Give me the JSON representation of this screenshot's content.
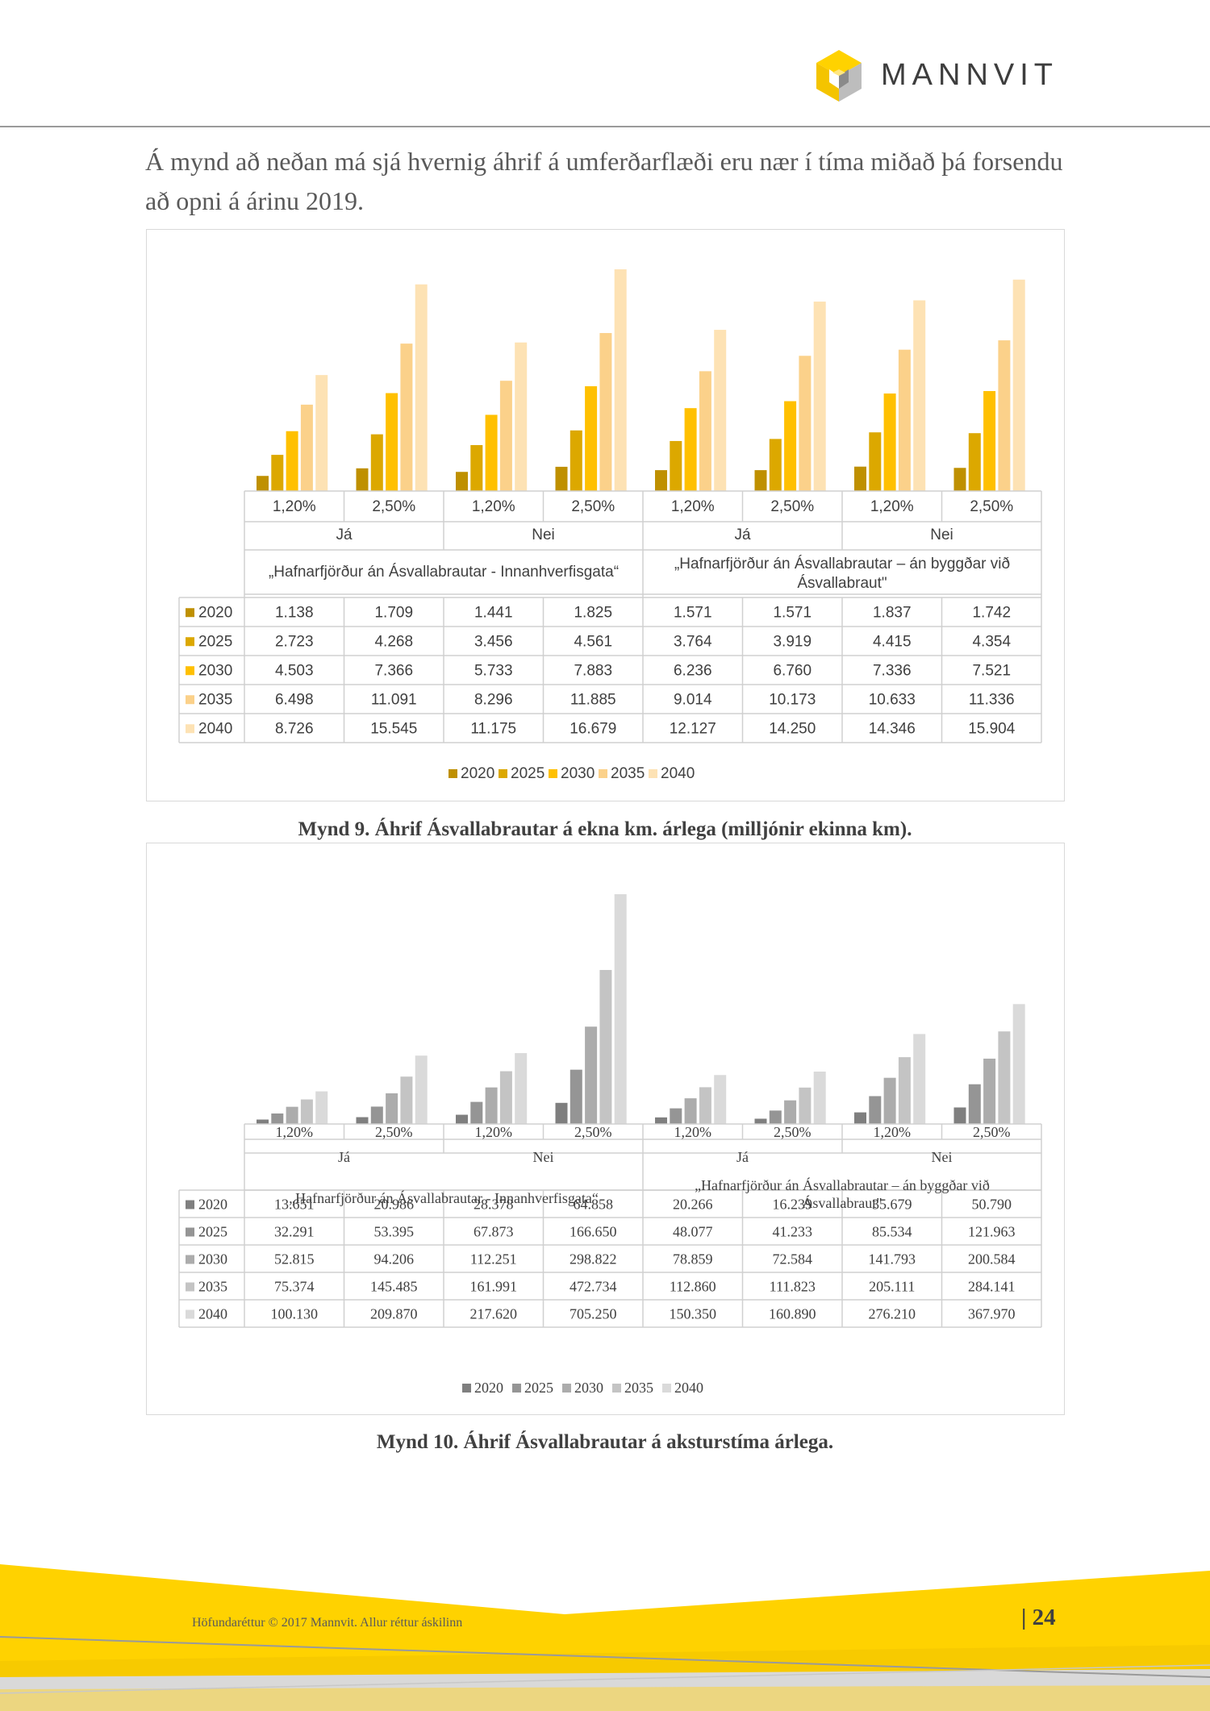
{
  "header": {
    "logo_text": "MANNVIT"
  },
  "intro_text": "Á mynd að neðan má sjá hvernig áhrif á umferðarflæði eru nær í tíma miðað þá forsendu að opni á árinu 2019.",
  "captions": {
    "figure9": "Mynd 9. Áhrif Ásvallabrautar á ekna km. árlega (milljónir ekinna km).",
    "figure10": "Mynd 10. Áhrif Ásvallabrautar á aksturstíma árlega."
  },
  "footer": {
    "copyright": "Höfundaréttur © 2017 Mannvit. Allur réttur áskilinn",
    "page_number": "| 24"
  },
  "chart_data": [
    {
      "type": "bar",
      "id": "figure9",
      "categories": [
        "1,20%",
        "2,50%",
        "1,20%",
        "2,50%",
        "1,20%",
        "2,50%",
        "1,20%",
        "2,50%"
      ],
      "category_groups": [
        "Já",
        "Nei",
        "Já",
        "Nei"
      ],
      "scenario_groups": [
        "„Hafnarfjörður án Ásvallabrautar - Innanhverfisgata“",
        "„Hafnarfjörður án Ásvallabrautar – án byggðar við Ásvallabraut\""
      ],
      "series": [
        {
          "name": "2020",
          "color": "#bf9000",
          "values": [
            1138,
            1709,
            1441,
            1825,
            1571,
            1571,
            1837,
            1742
          ],
          "labels": [
            "1.138",
            "1.709",
            "1.441",
            "1.825",
            "1.571",
            "1.571",
            "1.837",
            "1.742"
          ]
        },
        {
          "name": "2025",
          "color": "#dca800",
          "values": [
            2723,
            4268,
            3456,
            4561,
            3764,
            3919,
            4415,
            4354
          ],
          "labels": [
            "2.723",
            "4.268",
            "3.456",
            "4.561",
            "3.764",
            "3.919",
            "4.415",
            "4.354"
          ]
        },
        {
          "name": "2030",
          "color": "#ffc000",
          "values": [
            4503,
            7366,
            5733,
            7883,
            6236,
            6760,
            7336,
            7521
          ],
          "labels": [
            "4.503",
            "7.366",
            "5.733",
            "7.883",
            "6.236",
            "6.760",
            "7.336",
            "7.521"
          ]
        },
        {
          "name": "2035",
          "color": "#fbd18a",
          "values": [
            6498,
            11091,
            8296,
            11885,
            9014,
            10173,
            10633,
            11336
          ],
          "labels": [
            "6.498",
            "11.091",
            "8.296",
            "11.885",
            "9.014",
            "10.173",
            "10.633",
            "11.336"
          ]
        },
        {
          "name": "2040",
          "color": "#fde2b4",
          "values": [
            8726,
            15545,
            11175,
            16679,
            12127,
            14250,
            14346,
            15904
          ],
          "labels": [
            "8.726",
            "15.545",
            "11.175",
            "16.679",
            "12.127",
            "14.250",
            "14.346",
            "15.904"
          ]
        }
      ],
      "ylim": [
        0,
        16679
      ],
      "legend_position": "bottom",
      "grid": false
    },
    {
      "type": "bar",
      "id": "figure10",
      "categories": [
        "1,20%",
        "2,50%",
        "1,20%",
        "2,50%",
        "1,20%",
        "2,50%",
        "1,20%",
        "2,50%"
      ],
      "category_groups": [
        "Já",
        "Nei",
        "Já",
        "Nei"
      ],
      "scenario_groups": [
        "„Hafnarfjörður án Ásvallabrautar - Innanhverfisgata“",
        "„Hafnarfjörður án Ásvallabrautar – án byggðar við Ásvallabraut\""
      ],
      "series": [
        {
          "name": "2020",
          "color": "#7f7f7f",
          "values": [
            13651,
            20986,
            28378,
            64858,
            20266,
            16239,
            35679,
            50790
          ],
          "labels": [
            "13.651",
            "20.986",
            "28.378",
            "64.858",
            "20.266",
            "16.239",
            "35.679",
            "50.790"
          ]
        },
        {
          "name": "2025",
          "color": "#959595",
          "values": [
            32291,
            53395,
            67873,
            166650,
            48077,
            41233,
            85534,
            121963
          ],
          "labels": [
            "32.291",
            "53.395",
            "67.873",
            "166.650",
            "48.077",
            "41.233",
            "85.534",
            "121.963"
          ]
        },
        {
          "name": "2030",
          "color": "#acacac",
          "values": [
            52815,
            94206,
            112251,
            298822,
            78859,
            72584,
            141793,
            200584
          ],
          "labels": [
            "52.815",
            "94.206",
            "112.251",
            "298.822",
            "78.859",
            "72.584",
            "141.793",
            "200.584"
          ]
        },
        {
          "name": "2035",
          "color": "#c4c4c4",
          "values": [
            75374,
            145485,
            161991,
            472734,
            112860,
            111823,
            205111,
            284141
          ],
          "labels": [
            "75.374",
            "145.485",
            "161.991",
            "472.734",
            "112.860",
            "111.823",
            "205.111",
            "284.141"
          ]
        },
        {
          "name": "2040",
          "color": "#dadada",
          "values": [
            100130,
            209870,
            217620,
            705250,
            150350,
            160890,
            276210,
            367970
          ],
          "labels": [
            "100.130",
            "209.870",
            "217.620",
            "705.250",
            "150.350",
            "160.890",
            "276.210",
            "367.970"
          ]
        }
      ],
      "ylim": [
        0,
        705250
      ],
      "legend_position": "bottom",
      "grid": false
    }
  ]
}
